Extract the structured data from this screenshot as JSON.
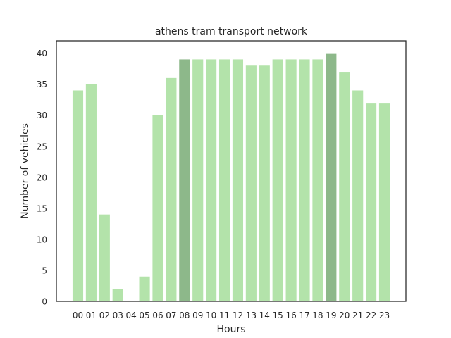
{
  "chart_data": {
    "type": "bar",
    "title": "athens tram transport network",
    "xlabel": "Hours",
    "ylabel": "Number of vehicles",
    "categories": [
      "00",
      "01",
      "02",
      "03",
      "04",
      "05",
      "06",
      "07",
      "08",
      "09",
      "10",
      "11",
      "12",
      "13",
      "14",
      "15",
      "16",
      "17",
      "18",
      "19",
      "20",
      "21",
      "22",
      "23"
    ],
    "values": [
      34,
      35,
      14,
      2,
      0,
      4,
      30,
      36,
      39,
      39,
      39,
      39,
      39,
      38,
      38,
      39,
      39,
      39,
      39,
      40,
      37,
      34,
      32,
      32
    ],
    "highlighted": [
      "08",
      "19"
    ],
    "ylim": [
      0,
      42
    ],
    "yticks": [
      0,
      5,
      10,
      15,
      20,
      25,
      30,
      35,
      40
    ],
    "grid": false,
    "colors": {
      "bar": "#b3e3aa",
      "bar_highlight": "#8db88a",
      "axes": "#262626"
    }
  }
}
